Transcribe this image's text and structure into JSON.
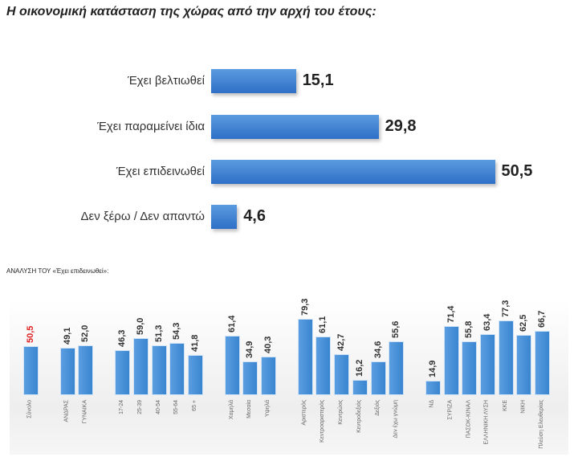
{
  "chart_data": [
    {
      "type": "bar",
      "orientation": "horizontal",
      "title": "Η οικονομική κατάσταση της χώρας από την αρχή του έτους:",
      "categories": [
        "Έχει βελτιωθεί",
        "Έχει παραμείνει ίδια",
        "Έχει επιδεινωθεί",
        "Δεν ξέρω / Δεν απαντώ"
      ],
      "values": [
        "15,1",
        "29,8",
        "50,5",
        "4,6"
      ],
      "color": "#3a7bd5"
    },
    {
      "type": "bar",
      "orientation": "vertical",
      "title": "ΑΝΑΛΥΣΗ ΤΟΥ «Έχει επιδεινωθεί»:",
      "groups": [
        {
          "categories": [
            "Σύνολο"
          ],
          "values": [
            "50,5"
          ]
        },
        {
          "categories": [
            "ΑΝΔΡΑΣ",
            "ΓΥΝΑΙΚΑ"
          ],
          "values": [
            "49,1",
            "52,0"
          ]
        },
        {
          "categories": [
            "17-24",
            "25-39",
            "40-54",
            "55-64",
            "65 +"
          ],
          "values": [
            "46,3",
            "59,0",
            "51,3",
            "54,3",
            "41,8"
          ]
        },
        {
          "categories": [
            "Χαμηλά",
            "Μεσαία",
            "Υψηλά"
          ],
          "values": [
            "61,4",
            "34,9",
            "40,3"
          ]
        },
        {
          "categories": [
            "Αριστερός",
            "Κεντροαριστερός",
            "Κεντρώος",
            "Κεντροδεξιός",
            "Δεξιός",
            "Δεν έχω γνώμη"
          ],
          "values": [
            "79,3",
            "61,1",
            "42,7",
            "16,2",
            "34,6",
            "55,6"
          ]
        },
        {
          "categories": [
            "ΝΔ",
            "ΣΥΡΙΖΑ",
            "ΠΑΣΟΚ-ΚΙΝΑΛ",
            "ΕΛΛΗΝΙΚΗ ΛΥΣΗ",
            "ΚΚΕ",
            "ΝΙΚΗ",
            "Πλεύση Ελευθερίας"
          ],
          "values": [
            "14,9",
            "71,4",
            "55,8",
            "63,4",
            "77,3",
            "62,5",
            "66,7"
          ]
        }
      ],
      "highlight_color": "#e02020",
      "color": "#3a85d0"
    }
  ]
}
